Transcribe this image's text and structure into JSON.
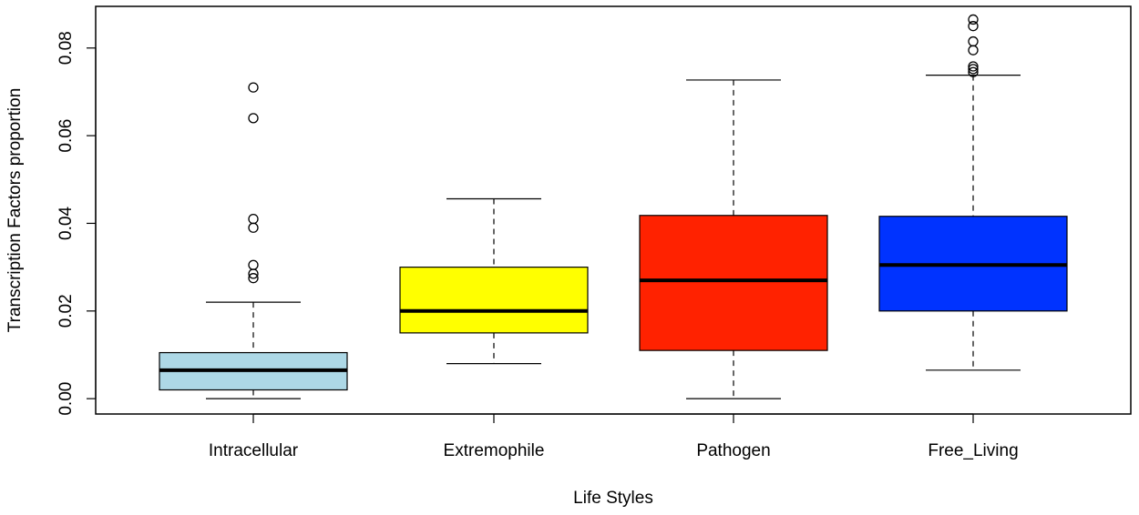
{
  "chart_data": {
    "type": "box",
    "xlabel": "Life Styles",
    "ylabel": "Transcription Factors proportion",
    "ylim": [
      -0.0035,
      0.0895
    ],
    "yticks": [
      0.0,
      0.02,
      0.04,
      0.06,
      0.08
    ],
    "ytick_labels": [
      "0.00",
      "0.02",
      "0.04",
      "0.06",
      "0.08"
    ],
    "grid": false,
    "legend": "none",
    "categories": [
      "Intracellular",
      "Extremophile",
      "Pathogen",
      "Free_Living"
    ],
    "boxes": [
      {
        "category": "Intracellular",
        "color": "#add8e6",
        "whisker_low": 0.0,
        "q1": 0.002,
        "median": 0.0065,
        "q3": 0.0105,
        "whisker_high": 0.022,
        "outliers": [
          0.0275,
          0.0285,
          0.0305,
          0.039,
          0.041,
          0.064,
          0.071
        ]
      },
      {
        "category": "Extremophile",
        "color": "#ffff00",
        "whisker_low": 0.008,
        "q1": 0.015,
        "median": 0.02,
        "q3": 0.03,
        "whisker_high": 0.0456,
        "outliers": []
      },
      {
        "category": "Pathogen",
        "color": "#ff2200",
        "whisker_low": 0.0,
        "q1": 0.011,
        "median": 0.027,
        "q3": 0.0418,
        "whisker_high": 0.0727,
        "outliers": []
      },
      {
        "category": "Free_Living",
        "color": "#0033ff",
        "whisker_low": 0.0065,
        "q1": 0.02,
        "median": 0.0305,
        "q3": 0.0416,
        "whisker_high": 0.0738,
        "outliers": [
          0.0745,
          0.0752,
          0.0758,
          0.0795,
          0.0815,
          0.085,
          0.0865
        ]
      }
    ]
  }
}
